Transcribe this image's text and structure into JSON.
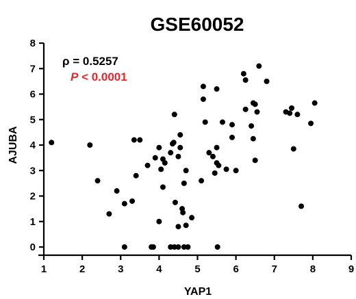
{
  "chart_data": {
    "type": "scatter",
    "title": "GSE60052",
    "xlabel": "YAP1",
    "ylabel": "AJUBA",
    "xlim": [
      1,
      9
    ],
    "ylim": [
      0,
      8
    ],
    "x_ticks": [
      "1",
      "2",
      "3",
      "4",
      "5",
      "6",
      "7",
      "8",
      "9"
    ],
    "y_ticks": [
      "0",
      "1",
      "2",
      "3",
      "4",
      "5",
      "6",
      "7",
      "8"
    ],
    "grid": false,
    "annotations": {
      "rho_text": "ρ = 0.5257",
      "p_label": "P",
      "p_value_text": " < 0.0001",
      "p_color": "#e8262b"
    },
    "points": [
      [
        1.2,
        4.1
      ],
      [
        2.2,
        4.0
      ],
      [
        2.4,
        2.6
      ],
      [
        2.7,
        1.3
      ],
      [
        2.9,
        2.2
      ],
      [
        3.1,
        1.7
      ],
      [
        3.1,
        0.0
      ],
      [
        3.3,
        1.8
      ],
      [
        3.35,
        4.2
      ],
      [
        3.4,
        2.8
      ],
      [
        3.5,
        4.2
      ],
      [
        3.7,
        3.2
      ],
      [
        3.8,
        0.0
      ],
      [
        3.85,
        0.0
      ],
      [
        3.9,
        3.5
      ],
      [
        4.0,
        3.9
      ],
      [
        4.0,
        1.0
      ],
      [
        4.05,
        3.05
      ],
      [
        4.1,
        3.45
      ],
      [
        4.1,
        2.35
      ],
      [
        4.15,
        3.3
      ],
      [
        4.3,
        3.7
      ],
      [
        4.3,
        0.0
      ],
      [
        4.35,
        4.05
      ],
      [
        4.38,
        4.1
      ],
      [
        4.4,
        0.0
      ],
      [
        4.4,
        5.2
      ],
      [
        4.42,
        1.75
      ],
      [
        4.5,
        3.55
      ],
      [
        4.5,
        0.8
      ],
      [
        4.5,
        0.0
      ],
      [
        4.55,
        3.9
      ],
      [
        4.55,
        4.4
      ],
      [
        4.6,
        1.5
      ],
      [
        4.62,
        1.35
      ],
      [
        4.65,
        2.5
      ],
      [
        4.65,
        0.0
      ],
      [
        4.7,
        3.0
      ],
      [
        4.7,
        0.85
      ],
      [
        4.75,
        0.0
      ],
      [
        4.85,
        1.15
      ],
      [
        5.1,
        2.6
      ],
      [
        5.15,
        6.3
      ],
      [
        5.15,
        5.8
      ],
      [
        5.2,
        4.9
      ],
      [
        5.3,
        3.7
      ],
      [
        5.4,
        3.55
      ],
      [
        5.45,
        2.9
      ],
      [
        5.5,
        3.9
      ],
      [
        5.5,
        6.2
      ],
      [
        5.5,
        3.3
      ],
      [
        5.55,
        3.2
      ],
      [
        5.52,
        0.0
      ],
      [
        5.65,
        4.9
      ],
      [
        5.75,
        3.05
      ],
      [
        5.9,
        4.8
      ],
      [
        5.9,
        4.3
      ],
      [
        6.0,
        3.0
      ],
      [
        6.2,
        6.8
      ],
      [
        6.25,
        6.55
      ],
      [
        6.25,
        5.4
      ],
      [
        6.4,
        4.75
      ],
      [
        6.45,
        5.65
      ],
      [
        6.45,
        4.25
      ],
      [
        6.5,
        5.6
      ],
      [
        6.5,
        3.4
      ],
      [
        6.55,
        5.3
      ],
      [
        6.6,
        7.1
      ],
      [
        6.8,
        6.5
      ],
      [
        7.3,
        5.3
      ],
      [
        7.4,
        5.25
      ],
      [
        7.45,
        5.45
      ],
      [
        7.5,
        3.85
      ],
      [
        7.6,
        5.2
      ],
      [
        7.7,
        1.6
      ],
      [
        7.95,
        4.85
      ],
      [
        8.05,
        5.65
      ]
    ]
  }
}
